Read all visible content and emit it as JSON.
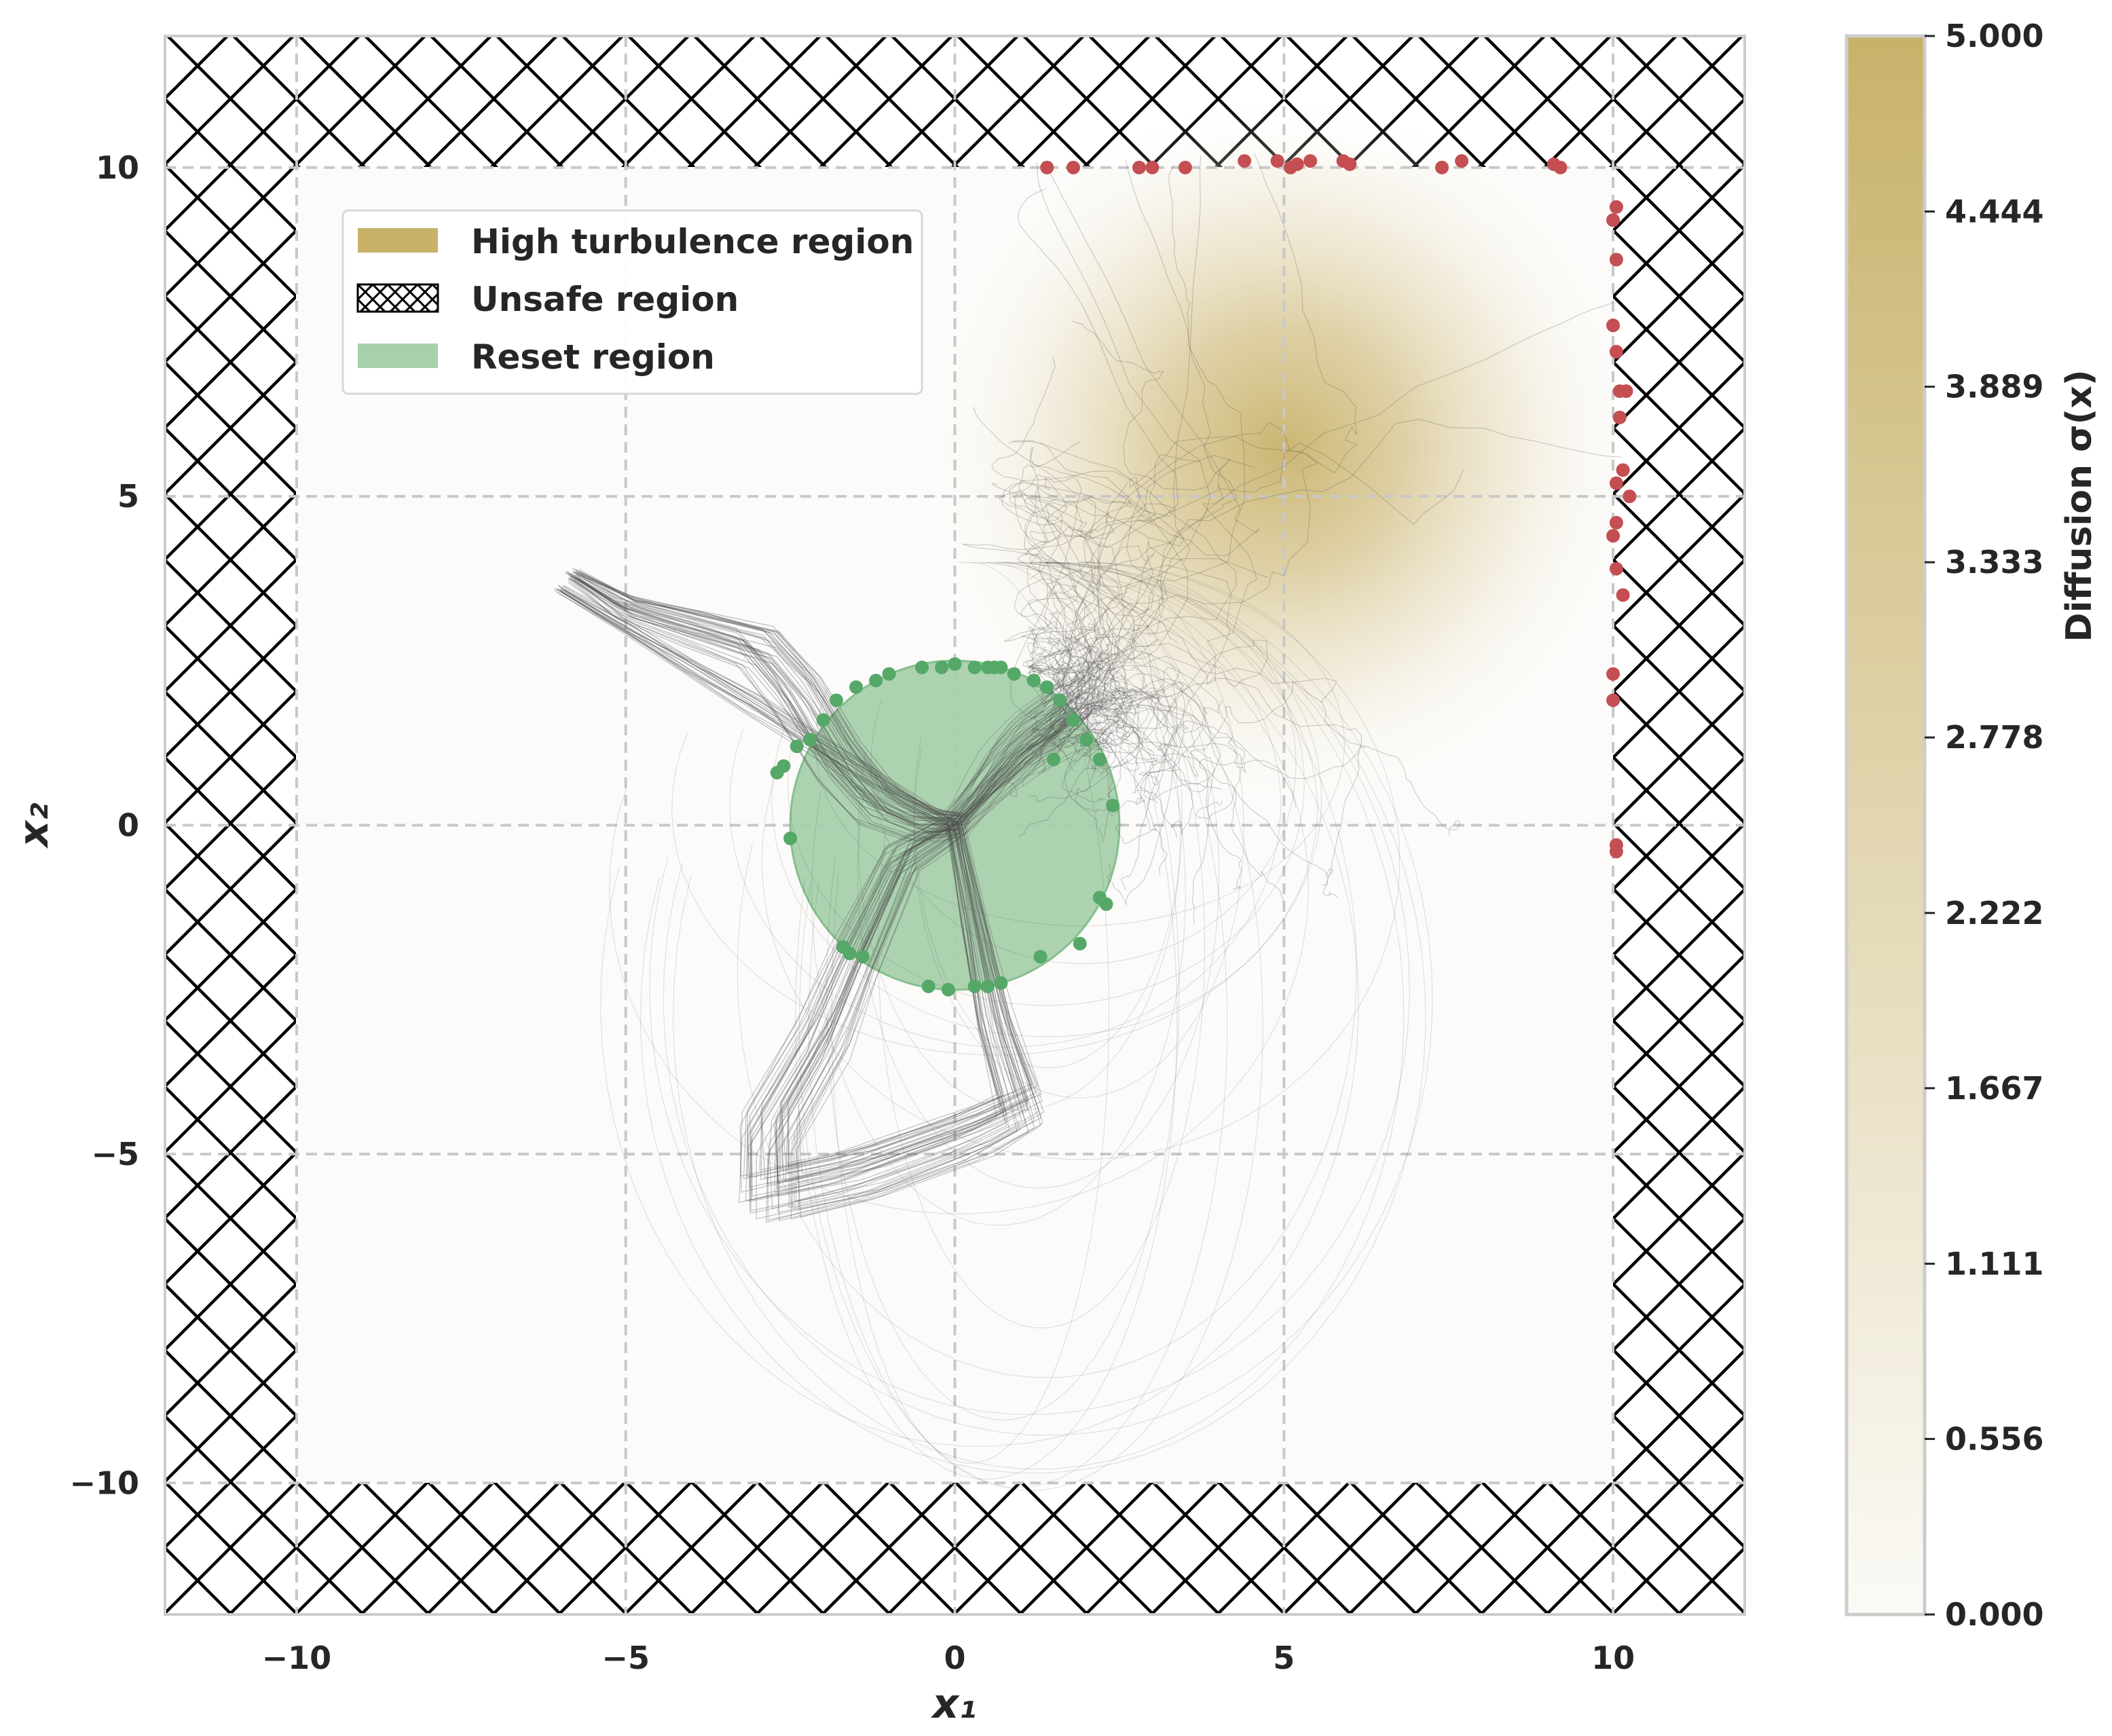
{
  "chart_data": [
    {
      "type": "scatter",
      "xlabel": "x₁",
      "ylabel": "x₂",
      "xlim": [
        -12,
        12
      ],
      "ylim": [
        -12,
        12
      ],
      "xticks": [
        -10,
        -5,
        0,
        5,
        10
      ],
      "yticks": [
        -10,
        -5,
        0,
        5,
        10
      ],
      "xtick_labels": [
        "−10",
        "−5",
        "0",
        "5",
        "10"
      ],
      "ytick_labels": [
        "−10",
        "−5",
        "0",
        "5",
        "10"
      ],
      "grid": true,
      "legend_position": "upper-left",
      "legend": [
        {
          "label": "High turbulence region",
          "kind": "patch",
          "color": "#c8b26a"
        },
        {
          "label": "Unsafe region",
          "kind": "hatch",
          "color": "#000000"
        },
        {
          "label": "Reset region",
          "kind": "patch",
          "color": "#a8d0ad"
        }
      ],
      "safe_region": {
        "x": [
          -10,
          10
        ],
        "y": [
          -10,
          10
        ]
      },
      "unsafe_region": "outside [-10, 10] x [-10, 10]",
      "reset_region": {
        "center": [
          0,
          0
        ],
        "radius": 2.5,
        "color": "#a8d0ad"
      },
      "turbulence_center": [
        5.2,
        4.8
      ],
      "turbulence_sigma_max": 5.0,
      "trajectory_color": "#4a4a4a",
      "unsafe_endpoints": {
        "color": "#c44e52",
        "points": [
          [
            1.4,
            10.0
          ],
          [
            1.8,
            10.0
          ],
          [
            2.8,
            10.0
          ],
          [
            3.0,
            10.0
          ],
          [
            3.5,
            10.0
          ],
          [
            4.4,
            10.1
          ],
          [
            4.9,
            10.1
          ],
          [
            5.1,
            10.0
          ],
          [
            5.2,
            10.05
          ],
          [
            5.4,
            10.1
          ],
          [
            5.9,
            10.1
          ],
          [
            6.0,
            10.05
          ],
          [
            7.4,
            10.0
          ],
          [
            7.7,
            10.1
          ],
          [
            9.1,
            10.05
          ],
          [
            9.2,
            10.0
          ],
          [
            10.05,
            9.4
          ],
          [
            10.0,
            9.2
          ],
          [
            10.05,
            8.6
          ],
          [
            10.0,
            7.6
          ],
          [
            10.05,
            7.2
          ],
          [
            10.1,
            6.6
          ],
          [
            10.2,
            6.6
          ],
          [
            10.1,
            6.2
          ],
          [
            10.15,
            5.4
          ],
          [
            10.05,
            5.2
          ],
          [
            10.25,
            5.0
          ],
          [
            10.05,
            4.6
          ],
          [
            10.0,
            4.4
          ],
          [
            10.05,
            3.9
          ],
          [
            10.15,
            3.5
          ],
          [
            10.0,
            2.3
          ],
          [
            10.0,
            1.9
          ],
          [
            10.05,
            -0.3
          ],
          [
            10.05,
            -0.4
          ]
        ]
      },
      "reset_endpoints": {
        "color": "#55a868",
        "points": [
          [
            -2.4,
            1.2
          ],
          [
            -2.2,
            1.3
          ],
          [
            -2.0,
            1.6
          ],
          [
            -1.8,
            1.9
          ],
          [
            -1.5,
            2.1
          ],
          [
            -1.2,
            2.2
          ],
          [
            -1.0,
            2.3
          ],
          [
            -0.5,
            2.4
          ],
          [
            -0.2,
            2.4
          ],
          [
            0.0,
            2.45
          ],
          [
            0.3,
            2.4
          ],
          [
            0.5,
            2.4
          ],
          [
            0.6,
            2.4
          ],
          [
            0.7,
            2.4
          ],
          [
            0.9,
            2.3
          ],
          [
            1.2,
            2.2
          ],
          [
            1.4,
            2.1
          ],
          [
            1.6,
            1.9
          ],
          [
            1.8,
            1.6
          ],
          [
            2.0,
            1.3
          ],
          [
            2.2,
            1.0
          ],
          [
            1.5,
            1.0
          ],
          [
            2.4,
            0.3
          ],
          [
            -2.5,
            -0.2
          ],
          [
            -2.7,
            0.8
          ],
          [
            -2.6,
            0.9
          ],
          [
            2.2,
            -1.1
          ],
          [
            2.3,
            -1.2
          ],
          [
            1.9,
            -1.8
          ],
          [
            1.3,
            -2.0
          ],
          [
            -1.7,
            -1.85
          ],
          [
            -1.4,
            -2.0
          ],
          [
            -1.6,
            -1.95
          ],
          [
            -0.4,
            -2.45
          ],
          [
            -0.1,
            -2.5
          ],
          [
            0.5,
            -2.45
          ],
          [
            0.7,
            -2.4
          ],
          [
            0.3,
            -2.45
          ]
        ]
      }
    },
    {
      "type": "colorbar",
      "label": "Diffusion σ(x)",
      "range": [
        0,
        5
      ],
      "tick_labels": [
        "0.000",
        "0.556",
        "1.111",
        "1.667",
        "2.222",
        "2.778",
        "3.333",
        "3.889",
        "4.444",
        "5.000"
      ],
      "color_low": "#fbfaf6",
      "color_high": "#c8b26a"
    }
  ]
}
